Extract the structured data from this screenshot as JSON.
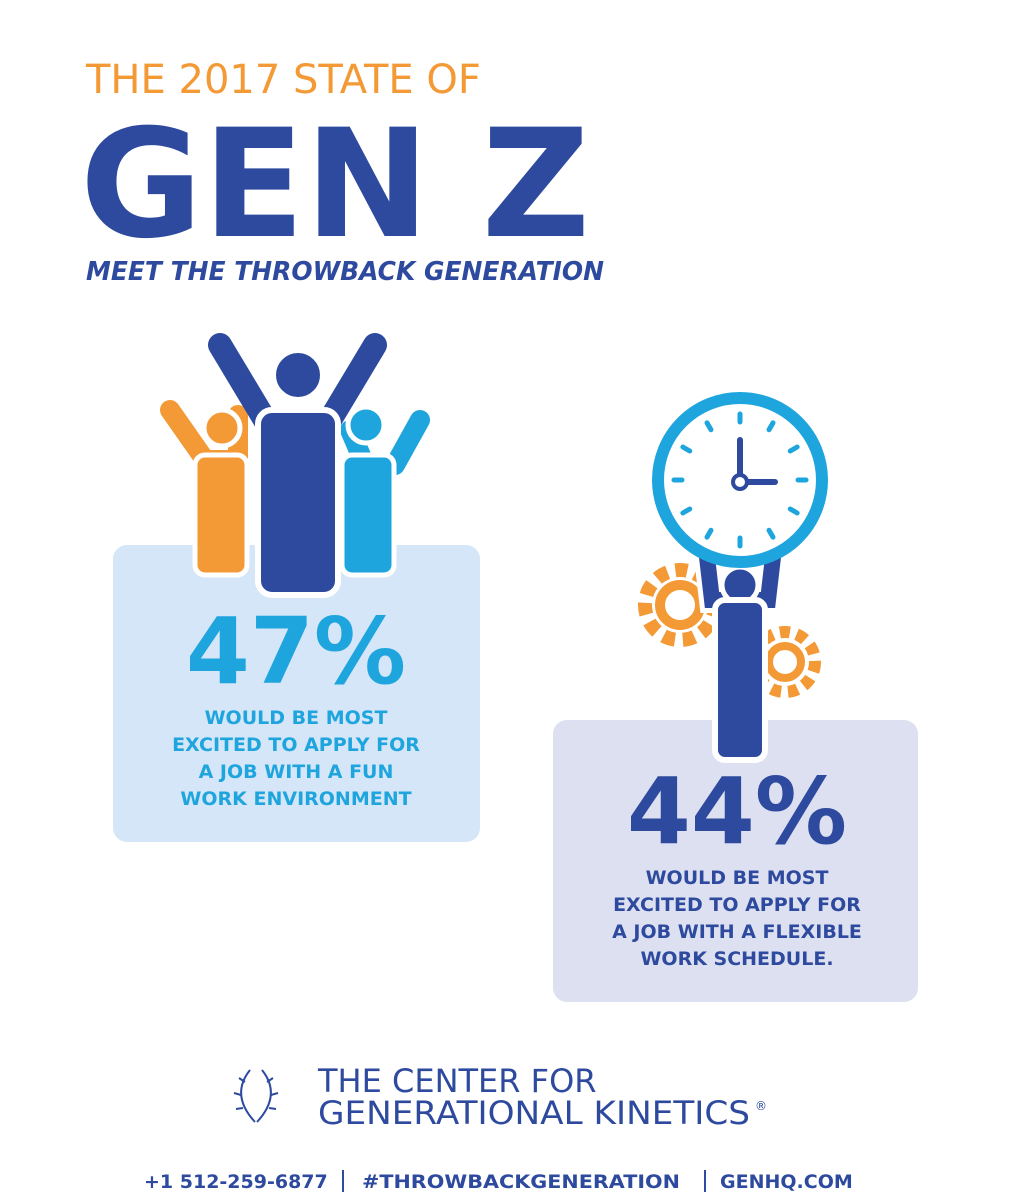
{
  "header": {
    "kicker": "THE 2017 STATE OF",
    "title": "GEN Z",
    "subtitle": "MEET THE THROWBACK GENERATION"
  },
  "stats": [
    {
      "value": "47%",
      "lines": [
        "WOULD BE MOST",
        "EXCITED TO APPLY FOR",
        "A JOB WITH A FUN",
        "WORK ENVIRONMENT"
      ]
    },
    {
      "value": "44%",
      "lines": [
        "WOULD BE MOST",
        "EXCITED TO APPLY FOR",
        "A JOB WITH A FLEXIBLE",
        "WORK SCHEDULE."
      ]
    }
  ],
  "footer": {
    "org": [
      "THE CENTER FOR",
      "GENERATIONAL KINETICS"
    ],
    "mark": "®",
    "contacts": [
      "+1 512-259-6877",
      "#THROWBACKGENERATION",
      "GENHQ.COM"
    ]
  }
}
